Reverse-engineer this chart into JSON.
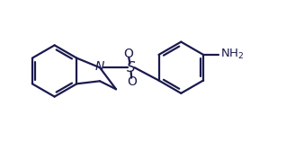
{
  "line_color": "#1a1a4e",
  "bg_color": "#ffffff",
  "line_width": 1.6,
  "font_size": 9,
  "figsize": [
    3.38,
    1.67
  ],
  "dpi": 100,
  "xlim": [
    0,
    11
  ],
  "ylim": [
    0,
    5.5
  ]
}
